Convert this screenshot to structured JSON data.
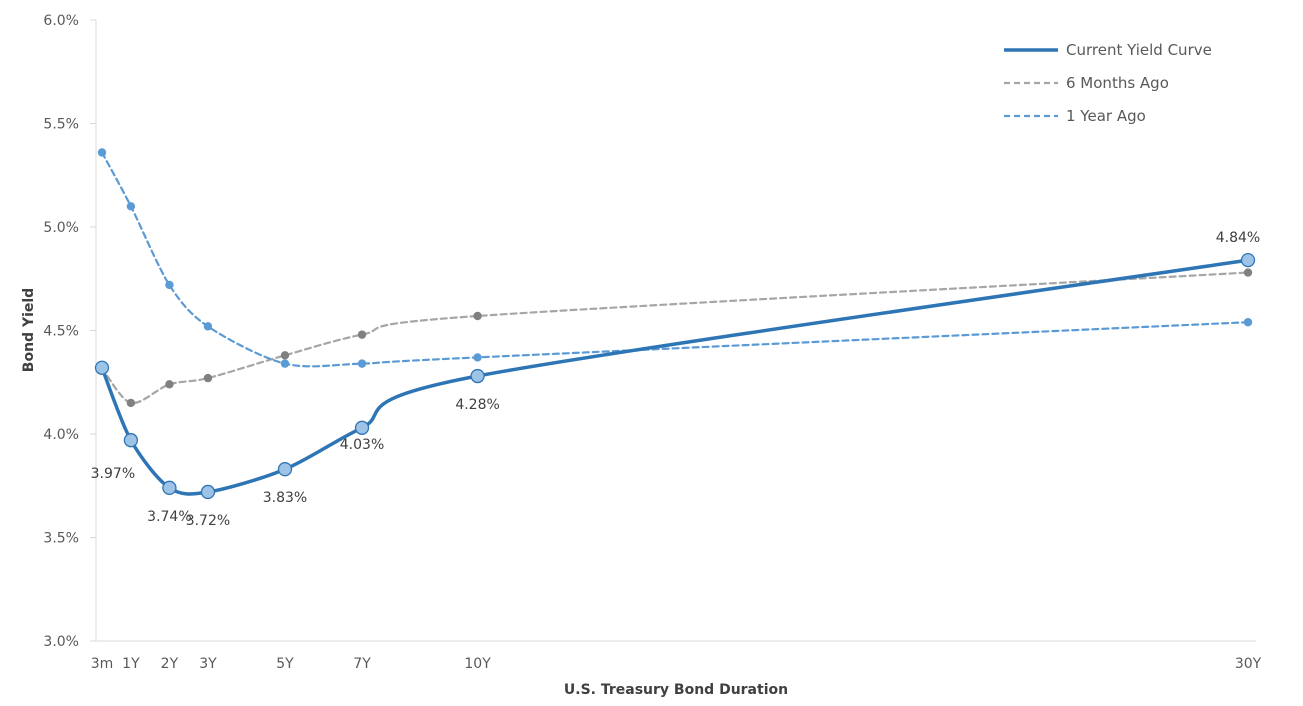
{
  "chart_data": {
    "type": "line",
    "title": "",
    "xlabel": "U.S. Treasury Bond Duration",
    "ylabel": "Bond Yield",
    "ylim": [
      3.0,
      6.0
    ],
    "yticks": [
      3.0,
      3.5,
      4.0,
      4.5,
      5.0,
      5.5,
      6.0
    ],
    "ytick_labels": [
      "3.0%",
      "3.5%",
      "4.0%",
      "4.5%",
      "5.0%",
      "5.5%",
      "6.0%"
    ],
    "x_categories": [
      "3m",
      "1Y",
      "2Y",
      "3Y",
      "5Y",
      "7Y",
      "10Y",
      "30Y"
    ],
    "x_values_years": [
      0.25,
      1,
      2,
      3,
      5,
      7,
      10,
      30
    ],
    "grid": false,
    "legend_position": "top-right",
    "series": [
      {
        "name": "Current Yield Curve",
        "values": [
          4.32,
          3.97,
          3.74,
          3.72,
          3.83,
          4.03,
          4.28,
          4.84
        ],
        "labels": [
          "",
          "3.97%",
          "3.74%",
          "3.72%",
          "3.83%",
          "4.03%",
          "4.28%",
          "4.84%"
        ],
        "color": "#2E75B6",
        "style": "solid"
      },
      {
        "name": "6 Months Ago",
        "values": [
          4.32,
          4.15,
          4.24,
          4.27,
          4.38,
          4.48,
          4.57,
          4.78
        ],
        "color": "#A6A6A6",
        "marker_color": "#808080",
        "style": "dashed"
      },
      {
        "name": "1 Year Ago",
        "values": [
          5.36,
          5.1,
          4.72,
          4.52,
          4.34,
          4.34,
          4.37,
          4.54
        ],
        "color": "#5B9BD5",
        "style": "dashed"
      }
    ]
  }
}
